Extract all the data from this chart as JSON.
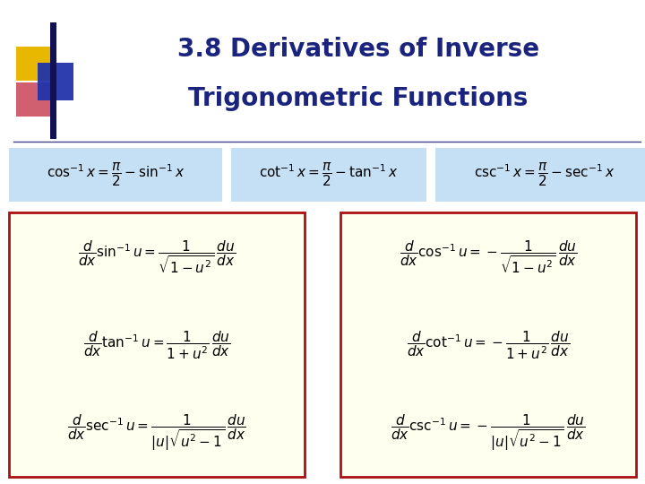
{
  "title_line1": "3.8 Derivatives of Inverse",
  "title_line2": "Trigonometric Functions",
  "title_color": "#1a237e",
  "title_fontsize": 20,
  "bg_color": "#ffffff",
  "identity_bg": "#c5dff5",
  "box_bg": "#fffff0",
  "box_border": "#aa1111",
  "id1": "$\\cos^{-1} x = \\dfrac{\\pi}{2} - \\sin^{-1} x$",
  "id2": "$\\cot^{-1} x = \\dfrac{\\pi}{2} - \\tan^{-1} x$",
  "id3": "$\\csc^{-1} x = \\dfrac{\\pi}{2} - \\sec^{-1} x$",
  "left_formulas": [
    "$\\dfrac{d}{dx}\\sin^{-1} u = \\dfrac{1}{\\sqrt{1-u^2}}\\,\\dfrac{du}{dx}$",
    "$\\dfrac{d}{dx}\\tan^{-1} u = \\dfrac{1}{1+u^2}\\,\\dfrac{du}{dx}$",
    "$\\dfrac{d}{dx}\\sec^{-1} u = \\dfrac{1}{|u|\\sqrt{u^2-1}}\\,\\dfrac{du}{dx}$"
  ],
  "right_formulas": [
    "$\\dfrac{d}{dx}\\cos^{-1} u = -\\dfrac{1}{\\sqrt{1-u^2}}\\,\\dfrac{du}{dx}$",
    "$\\dfrac{d}{dx}\\cot^{-1} u = -\\dfrac{1}{1+u^2}\\,\\dfrac{du}{dx}$",
    "$\\dfrac{d}{dx}\\csc^{-1} u = -\\dfrac{1}{|u|\\sqrt{u^2-1}}\\,\\dfrac{du}{dx}$"
  ],
  "formula_fontsize": 11,
  "identity_fontsize": 11,
  "decor_gold": "#e8b800",
  "decor_pink": "#d06070",
  "decor_blue": "#2233aa",
  "decor_darkblue": "#111155"
}
